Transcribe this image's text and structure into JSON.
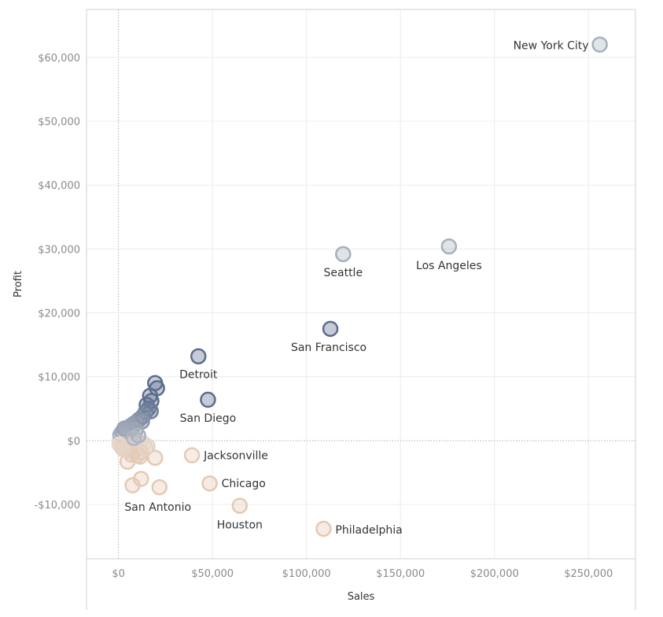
{
  "chart_data": {
    "type": "scatter",
    "title": "",
    "xlabel": "Sales",
    "ylabel": "Profit",
    "xlim": [
      -17000,
      275000
    ],
    "ylim": [
      -18500,
      67500
    ],
    "x_ticks": [
      0,
      50000,
      100000,
      150000,
      200000,
      250000
    ],
    "x_tick_labels": [
      "$0",
      "$50,000",
      "$100,000",
      "$150,000",
      "$200,000",
      "$250,000"
    ],
    "y_ticks": [
      -10000,
      0,
      10000,
      20000,
      30000,
      40000,
      50000,
      60000
    ],
    "y_tick_labels": [
      "-$10,000",
      "$0",
      "$10,000",
      "$20,000",
      "$30,000",
      "$40,000",
      "$50,000",
      "$60,000"
    ],
    "grid": true,
    "color_scale": {
      "negative": "#e4c9b4",
      "positive": "#5b6d8c"
    },
    "labeled_points": [
      {
        "label": "New York City",
        "x": 256000,
        "y": 62000
      },
      {
        "label": "Los Angeles",
        "x": 175800,
        "y": 30400
      },
      {
        "label": "Seattle",
        "x": 119500,
        "y": 29200
      },
      {
        "label": "San Francisco",
        "x": 112700,
        "y": 17500
      },
      {
        "label": "Detroit",
        "x": 42500,
        "y": 13200
      },
      {
        "label": "San Diego",
        "x": 47600,
        "y": 6400
      },
      {
        "label": "Jacksonville",
        "x": 39100,
        "y": -2300
      },
      {
        "label": "Chicago",
        "x": 48500,
        "y": -6700
      },
      {
        "label": "San Antonio",
        "x": 21800,
        "y": -7300
      },
      {
        "label": "Houston",
        "x": 64500,
        "y": -10200
      },
      {
        "label": "Philadelphia",
        "x": 109100,
        "y": -13800
      }
    ],
    "other_points": [
      {
        "x": 19500,
        "y": 9000
      },
      {
        "x": 20500,
        "y": 8200
      },
      {
        "x": 16800,
        "y": 7000
      },
      {
        "x": 17500,
        "y": 6200
      },
      {
        "x": 15000,
        "y": 5600
      },
      {
        "x": 16000,
        "y": 5000
      },
      {
        "x": 14500,
        "y": 4500
      },
      {
        "x": 17200,
        "y": 4600
      },
      {
        "x": 13000,
        "y": 3800
      },
      {
        "x": 11000,
        "y": 3300
      },
      {
        "x": 9500,
        "y": 2900
      },
      {
        "x": 12500,
        "y": 3000
      },
      {
        "x": 8000,
        "y": 2600
      },
      {
        "x": 6500,
        "y": 2300
      },
      {
        "x": 5000,
        "y": 2000
      },
      {
        "x": 7000,
        "y": 1800
      },
      {
        "x": 4000,
        "y": 1500
      },
      {
        "x": 9000,
        "y": 1600
      },
      {
        "x": 3000,
        "y": 1200
      },
      {
        "x": 5500,
        "y": 1100
      },
      {
        "x": 2500,
        "y": 800
      },
      {
        "x": 4500,
        "y": 700
      },
      {
        "x": 1500,
        "y": 500
      },
      {
        "x": 6000,
        "y": 600
      },
      {
        "x": 3500,
        "y": 300
      },
      {
        "x": 800,
        "y": 200
      },
      {
        "x": 2000,
        "y": 100
      },
      {
        "x": 1200,
        "y": 0
      },
      {
        "x": 500,
        "y": -100
      },
      {
        "x": 3000,
        "y": -200
      },
      {
        "x": 1800,
        "y": -300
      },
      {
        "x": 4000,
        "y": -500
      },
      {
        "x": 5200,
        "y": -700
      },
      {
        "x": 2600,
        "y": -600
      },
      {
        "x": 6500,
        "y": -900
      },
      {
        "x": 3800,
        "y": -1100
      },
      {
        "x": 7500,
        "y": -1300
      },
      {
        "x": 5000,
        "y": -1500
      },
      {
        "x": 8500,
        "y": -1600
      },
      {
        "x": 9500,
        "y": -800
      },
      {
        "x": 11500,
        "y": -300
      },
      {
        "x": 13500,
        "y": -500
      },
      {
        "x": 15500,
        "y": -900
      },
      {
        "x": 12000,
        "y": -1800
      },
      {
        "x": 10000,
        "y": -2300
      },
      {
        "x": 7000,
        "y": -2200
      },
      {
        "x": 4800,
        "y": -3300
      },
      {
        "x": 19500,
        "y": -2700
      },
      {
        "x": 11500,
        "y": -2500
      },
      {
        "x": 14500,
        "y": -1200
      },
      {
        "x": 12000,
        "y": -6000
      },
      {
        "x": 7500,
        "y": -7000
      },
      {
        "x": 1000,
        "y": 900
      },
      {
        "x": 2200,
        "y": 1400
      },
      {
        "x": 3200,
        "y": 1900
      },
      {
        "x": 600,
        "y": -600
      },
      {
        "x": 1400,
        "y": -900
      },
      {
        "x": 2400,
        "y": -1300
      },
      {
        "x": 10500,
        "y": 800
      },
      {
        "x": 8200,
        "y": 400
      }
    ]
  }
}
